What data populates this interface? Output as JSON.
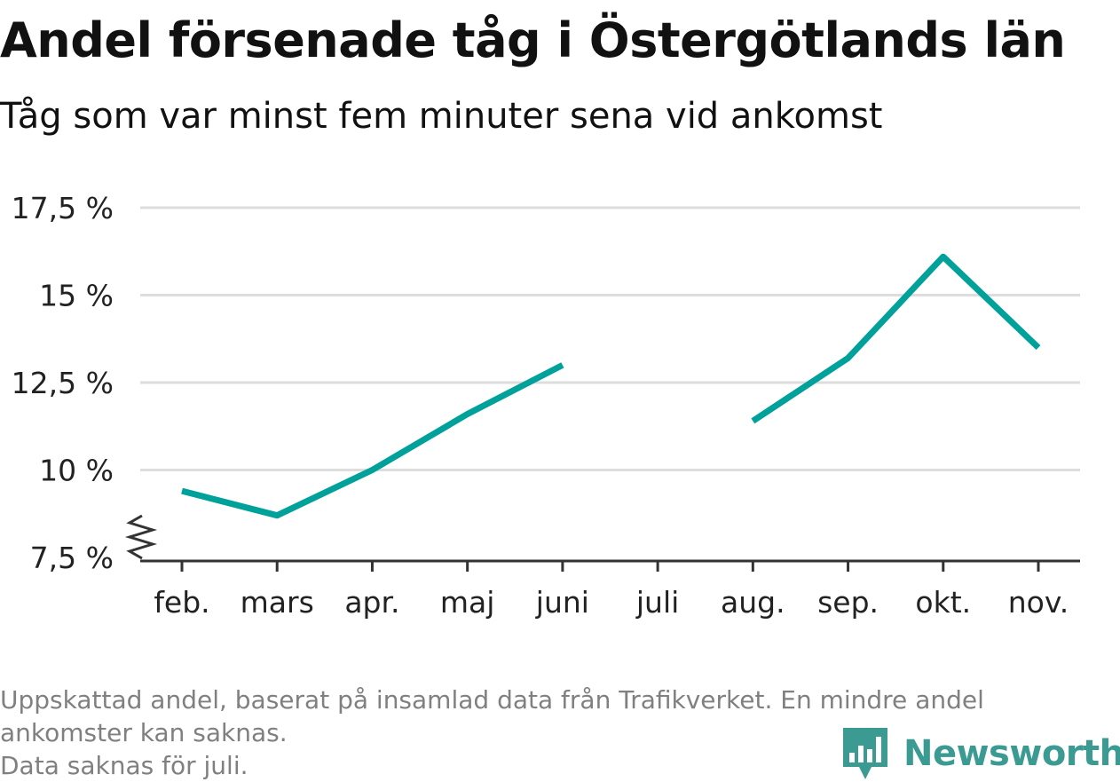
{
  "title": "Andel försenade tåg i Östergötlands län",
  "subtitle": "Tåg som var minst fem minuter sena vid ankomst",
  "footnote": {
    "line1": "Uppskattad andel, baserat på insamlad data från Trafikverket. En mindre andel",
    "line2": "ankomster kan saknas.",
    "line3": "Data saknas för juli."
  },
  "brand": {
    "name": "Newsworthy",
    "color": "#3b9a92",
    "icon": "bar-chart-speech-bubble-icon"
  },
  "chart_data": {
    "type": "line",
    "title": "Andel försenade tåg i Östergötlands län",
    "subtitle": "Tåg som var minst fem minuter sena vid ankomst",
    "categories": [
      "feb.",
      "mars",
      "apr.",
      "maj",
      "juni",
      "juli",
      "aug.",
      "sep.",
      "okt.",
      "nov."
    ],
    "series": [
      {
        "values": [
          9.4,
          8.7,
          10.0,
          11.6,
          13.0,
          null,
          11.4,
          13.2,
          16.1,
          13.5
        ],
        "color": "#00a19a"
      }
    ],
    "yticks": [
      7.5,
      10,
      12.5,
      15,
      17.5
    ],
    "ytick_labels": [
      "7,5 %",
      "10 %",
      "12,5 %",
      "15 %",
      "17,5 %"
    ],
    "ylim": [
      7.5,
      17.5
    ],
    "y_axis_break": true,
    "grid": true,
    "gridline_color": "#dddddd",
    "axis_color": "#333333"
  }
}
